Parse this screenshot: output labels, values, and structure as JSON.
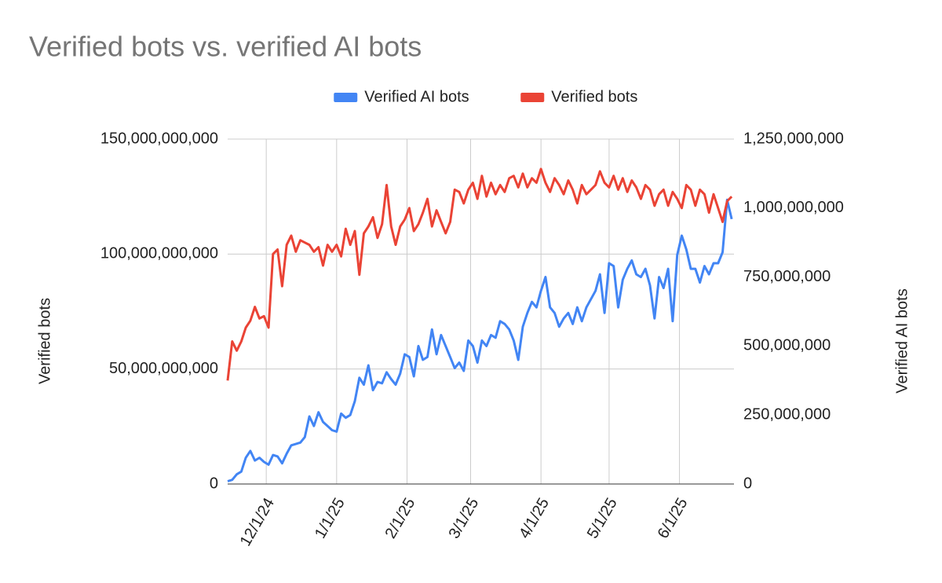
{
  "chart_data": {
    "type": "line",
    "title": "Verified bots vs. verified AI bots",
    "y_label": "Verified bots",
    "y2_label": "Verified AI bots",
    "legend": "top",
    "grid": true,
    "x": [
      "11/14/24",
      "11/16/24",
      "11/18/24",
      "11/20/24",
      "11/22/24",
      "11/24/24",
      "11/26/24",
      "11/28/24",
      "11/30/24",
      "12/2/24",
      "12/4/24",
      "12/6/24",
      "12/8/24",
      "12/10/24",
      "12/12/24",
      "12/14/24",
      "12/16/24",
      "12/18/24",
      "12/20/24",
      "12/22/24",
      "12/24/24",
      "12/26/24",
      "12/28/24",
      "12/30/24",
      "1/1/25",
      "1/3/25",
      "1/5/25",
      "1/7/25",
      "1/9/25",
      "1/11/25",
      "1/13/25",
      "1/15/25",
      "1/17/25",
      "1/19/25",
      "1/21/25",
      "1/23/25",
      "1/25/25",
      "1/27/25",
      "1/29/25",
      "1/31/25",
      "2/2/25",
      "2/4/25",
      "2/6/25",
      "2/8/25",
      "2/10/25",
      "2/12/25",
      "2/14/25",
      "2/16/25",
      "2/18/25",
      "2/20/25",
      "2/22/25",
      "2/24/25",
      "2/26/25",
      "2/28/25",
      "3/2/25",
      "3/4/25",
      "3/6/25",
      "3/8/25",
      "3/10/25",
      "3/12/25",
      "3/14/25",
      "3/16/25",
      "3/18/25",
      "3/20/25",
      "3/22/25",
      "3/24/25",
      "3/26/25",
      "3/28/25",
      "3/30/25",
      "4/1/25",
      "4/3/25",
      "4/5/25",
      "4/7/25",
      "4/9/25",
      "4/11/25",
      "4/13/25",
      "4/15/25",
      "4/17/25",
      "4/19/25",
      "4/21/25",
      "4/23/25",
      "4/25/25",
      "4/27/25",
      "4/29/25",
      "5/1/25",
      "5/3/25",
      "5/5/25",
      "5/7/25",
      "5/9/25",
      "5/11/25",
      "5/13/25",
      "5/15/25",
      "5/17/25",
      "5/19/25",
      "5/21/25",
      "5/23/25",
      "5/25/25",
      "5/27/25",
      "5/29/25",
      "5/31/25",
      "6/2/25",
      "6/4/25",
      "6/6/25",
      "6/8/25",
      "6/10/25",
      "6/12/25",
      "6/14/25",
      "6/16/25",
      "6/18/25",
      "6/20/25",
      "6/22/25",
      "6/24/25"
    ],
    "xlim": [
      "11/14/24",
      "6/25/25"
    ],
    "xticks": [
      "12/1/24",
      "1/1/25",
      "2/1/25",
      "3/1/25",
      "4/1/25",
      "5/1/25",
      "6/1/25"
    ],
    "ylim": [
      0,
      150000000000.0
    ],
    "yticks": [
      0,
      {
        "value": 50000000000.0,
        "label": "50,000,000,000"
      },
      {
        "value": 100000000000.0,
        "label": "100,000,000,000"
      },
      {
        "value": 150000000000.0,
        "label": "150,000,000,000"
      }
    ],
    "y2lim": [
      0,
      1250000000.0
    ],
    "y2ticks": [
      0,
      {
        "value": 250000000.0,
        "label": "250,000,000"
      },
      {
        "value": 500000000.0,
        "label": "500,000,000"
      },
      {
        "value": 750000000.0,
        "label": "750,000,000"
      },
      {
        "value": 1000000000.0,
        "label": "1,000,000,000"
      },
      {
        "value": 1250000000.0,
        "label": "1,250,000,000"
      }
    ],
    "series": [
      {
        "name": "Verified AI bots",
        "color": "#4285f4",
        "axis": "y2",
        "values": [
          10000000.0,
          15000000.0,
          35000000.0,
          45000000.0,
          95000000.0,
          120000000.0,
          85000000.0,
          95000000.0,
          80000000.0,
          70000000.0,
          105000000.0,
          100000000.0,
          75000000.0,
          110000000.0,
          140000000.0,
          145000000.0,
          150000000.0,
          170000000.0,
          245000000.0,
          210000000.0,
          260000000.0,
          225000000.0,
          210000000.0,
          195000000.0,
          190000000.0,
          255000000.0,
          240000000.0,
          250000000.0,
          300000000.0,
          385000000.0,
          360000000.0,
          430000000.0,
          340000000.0,
          370000000.0,
          365000000.0,
          405000000.0,
          380000000.0,
          360000000.0,
          400000000.0,
          470000000.0,
          460000000.0,
          390000000.0,
          500000000.0,
          450000000.0,
          460000000.0,
          560000000.0,
          470000000.0,
          540000000.0,
          500000000.0,
          460000000.0,
          420000000.0,
          440000000.0,
          410000000.0,
          520000000.0,
          500000000.0,
          440000000.0,
          520000000.0,
          500000000.0,
          540000000.0,
          530000000.0,
          590000000.0,
          580000000.0,
          560000000.0,
          520000000.0,
          450000000.0,
          570000000.0,
          620000000.0,
          660000000.0,
          640000000.0,
          700000000.0,
          750000000.0,
          640000000.0,
          620000000.0,
          570000000.0,
          600000000.0,
          620000000.0,
          580000000.0,
          640000000.0,
          590000000.0,
          640000000.0,
          670000000.0,
          700000000.0,
          760000000.0,
          620000000.0,
          800000000.0,
          790000000.0,
          640000000.0,
          740000000.0,
          780000000.0,
          810000000.0,
          760000000.0,
          750000000.0,
          780000000.0,
          720000000.0,
          600000000.0,
          750000000.0,
          710000000.0,
          780000000.0,
          590000000.0,
          830000000.0,
          900000000.0,
          850000000.0,
          780000000.0,
          780000000.0,
          730000000.0,
          790000000.0,
          760000000.0,
          800000000.0,
          800000000.0,
          840000000.0,
          1030000000.0,
          960000000.0
        ]
      },
      {
        "name": "Verified bots",
        "color": "#ea4335",
        "values": [
          45000000000.0,
          62000000000.0,
          58000000000.0,
          62000000000.0,
          68000000000.0,
          71000000000.0,
          77000000000.0,
          72000000000.0,
          73000000000.0,
          68000000000.0,
          100000000000.0,
          102000000000.0,
          86000000000.0,
          104000000000.0,
          108000000000.0,
          101000000000.0,
          106000000000.0,
          105000000000.0,
          104000000000.0,
          101000000000.0,
          103000000000.0,
          95000000000.0,
          104000000000.0,
          101000000000.0,
          104000000000.0,
          99000000000.0,
          111000000000.0,
          104000000000.0,
          110000000000.0,
          91000000000.0,
          109000000000.0,
          112000000000.0,
          116000000000.0,
          107000000000.0,
          113000000000.0,
          130000000000.0,
          112000000000.0,
          104000000000.0,
          112000000000.0,
          115000000000.0,
          120000000000.0,
          110000000000.0,
          113000000000.0,
          118000000000.0,
          124000000000.0,
          112000000000.0,
          119000000000.0,
          114000000000.0,
          109000000000.0,
          114000000000.0,
          128000000000.0,
          127000000000.0,
          122000000000.0,
          128000000000.0,
          131000000000.0,
          124000000000.0,
          134000000000.0,
          125000000000.0,
          131000000000.0,
          126000000000.0,
          130000000000.0,
          127000000000.0,
          133000000000.0,
          134000000000.0,
          129000000000.0,
          135000000000.0,
          129000000000.0,
          133000000000.0,
          131000000000.0,
          137000000000.0,
          131000000000.0,
          127000000000.0,
          133000000000.0,
          130000000000.0,
          126000000000.0,
          132000000000.0,
          128000000000.0,
          122000000000.0,
          130000000000.0,
          126000000000.0,
          128000000000.0,
          130000000000.0,
          136000000000.0,
          131000000000.0,
          129000000000.0,
          134000000000.0,
          128000000000.0,
          133000000000.0,
          127000000000.0,
          132000000000.0,
          129000000000.0,
          124000000000.0,
          130000000000.0,
          128000000000.0,
          121000000000.0,
          126000000000.0,
          128000000000.0,
          121000000000.0,
          127000000000.0,
          124000000000.0,
          120000000000.0,
          130000000000.0,
          128000000000.0,
          121000000000.0,
          128000000000.0,
          126000000000.0,
          118000000000.0,
          126000000000.0,
          120000000000.0,
          114000000000.0,
          123000000000.0,
          125000000000.0
        ]
      }
    ]
  }
}
